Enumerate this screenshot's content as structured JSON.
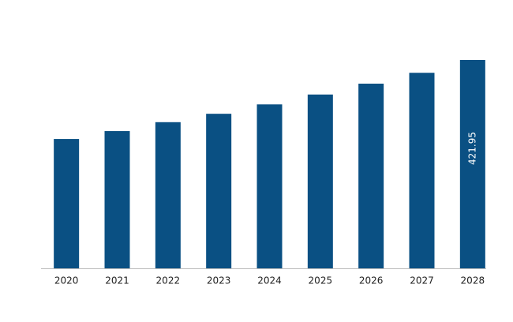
{
  "chart_data": {
    "type": "bar",
    "categories": [
      "2020",
      "2021",
      "2022",
      "2023",
      "2024",
      "2025",
      "2026",
      "2027",
      "2028"
    ],
    "values": [
      262,
      278,
      296,
      313,
      332,
      352,
      374,
      396,
      421.95
    ],
    "value_labels": [
      null,
      null,
      null,
      null,
      null,
      null,
      null,
      null,
      "421.95"
    ],
    "color": "#0a5083"
  }
}
